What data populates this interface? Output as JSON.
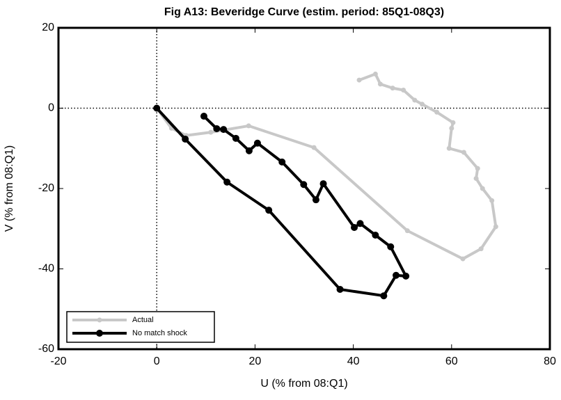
{
  "chart_data": {
    "type": "line",
    "title": "Fig A13: Beveridge Curve (estim. period: 85Q1-08Q3)",
    "x_label": "U (% from 08:Q1)",
    "y_label": "V (% from 08:Q1)",
    "xlim": [
      -20,
      80
    ],
    "xticks": [
      -20,
      0,
      20,
      40,
      60,
      80
    ],
    "ylim": [
      -60,
      20
    ],
    "yticks": [
      -60,
      -40,
      -20,
      0,
      20
    ],
    "reference_lines": {
      "x": 0,
      "y": 0
    },
    "legend": "lower left",
    "series": [
      {
        "name": "Actual",
        "color": "#c8c8c8",
        "x": [
          0,
          3,
          6,
          11,
          18.7,
          32,
          51,
          62.3,
          66,
          69,
          68.2,
          66.3,
          65,
          65.3,
          62.5,
          59.5,
          60,
          60.3,
          57,
          54,
          52.5,
          50.2,
          48,
          45.5,
          44.5,
          41.2
        ],
        "values": [
          0,
          -5,
          -6.8,
          -6,
          -4.4,
          -9.8,
          -30.5,
          -37.5,
          -35,
          -29.5,
          -23,
          -20,
          -17.5,
          -15,
          -11,
          -10,
          -5,
          -3.6,
          -1,
          1,
          2,
          4.5,
          5,
          6,
          8.5,
          7
        ]
      },
      {
        "name": "No match shock",
        "color": "#000000",
        "x": [
          0,
          5.8,
          14.3,
          22.8,
          37.3,
          46.2,
          48.7,
          50.7,
          47.6,
          44.5,
          41.4,
          40.2,
          33.9,
          32.4,
          29.9,
          25.5,
          20.5,
          18.8,
          16.1,
          13.6,
          12.2,
          9.6
        ],
        "values": [
          0,
          -7.7,
          -18.4,
          -25.4,
          -45.1,
          -46.7,
          -41.6,
          -41.8,
          -34.5,
          -31.6,
          -28.7,
          -29.7,
          -18.8,
          -22.8,
          -19,
          -13.4,
          -8.7,
          -10.6,
          -7.5,
          -5.3,
          -5.1,
          -2
        ]
      }
    ]
  }
}
